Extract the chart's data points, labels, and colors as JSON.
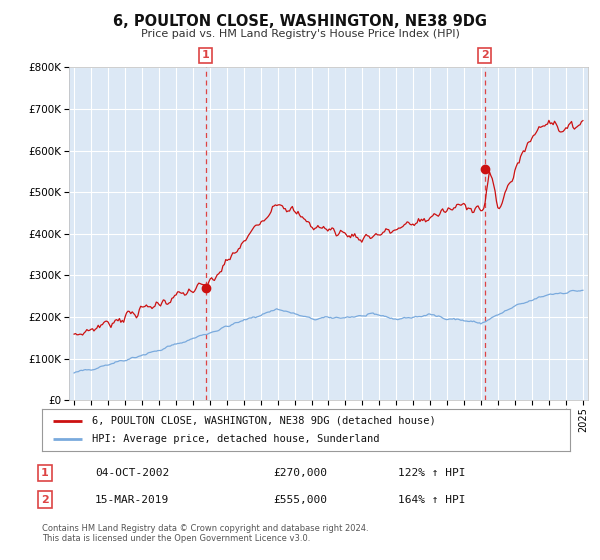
{
  "title": "6, POULTON CLOSE, WASHINGTON, NE38 9DG",
  "subtitle": "Price paid vs. HM Land Registry's House Price Index (HPI)",
  "background_color": "#ffffff",
  "plot_background": "#dce8f5",
  "grid_color": "#ffffff",
  "xlim": [
    1994.7,
    2025.3
  ],
  "ylim": [
    0,
    800000
  ],
  "yticks": [
    0,
    100000,
    200000,
    300000,
    400000,
    500000,
    600000,
    700000,
    800000
  ],
  "ytick_labels": [
    "£0",
    "£100K",
    "£200K",
    "£300K",
    "£400K",
    "£500K",
    "£600K",
    "£700K",
    "£800K"
  ],
  "xtick_years": [
    1995,
    1996,
    1997,
    1998,
    1999,
    2000,
    2001,
    2002,
    2003,
    2004,
    2005,
    2006,
    2007,
    2008,
    2009,
    2010,
    2011,
    2012,
    2013,
    2014,
    2015,
    2016,
    2017,
    2018,
    2019,
    2020,
    2021,
    2022,
    2023,
    2024,
    2025
  ],
  "sale1_x": 2002.75,
  "sale1_y": 270000,
  "sale1_label": "1",
  "sale1_date": "04-OCT-2002",
  "sale1_price": "£270,000",
  "sale1_hpi": "122% ↑ HPI",
  "sale2_x": 2019.2,
  "sale2_y": 555000,
  "sale2_label": "2",
  "sale2_date": "15-MAR-2019",
  "sale2_price": "£555,000",
  "sale2_hpi": "164% ↑ HPI",
  "hpi_line_color": "#7aaadd",
  "price_line_color": "#cc1111",
  "vline_color": "#dd4444",
  "legend1": "6, POULTON CLOSE, WASHINGTON, NE38 9DG (detached house)",
  "legend2": "HPI: Average price, detached house, Sunderland",
  "footer1": "Contains HM Land Registry data © Crown copyright and database right 2024.",
  "footer2": "This data is licensed under the Open Government Licence v3.0."
}
